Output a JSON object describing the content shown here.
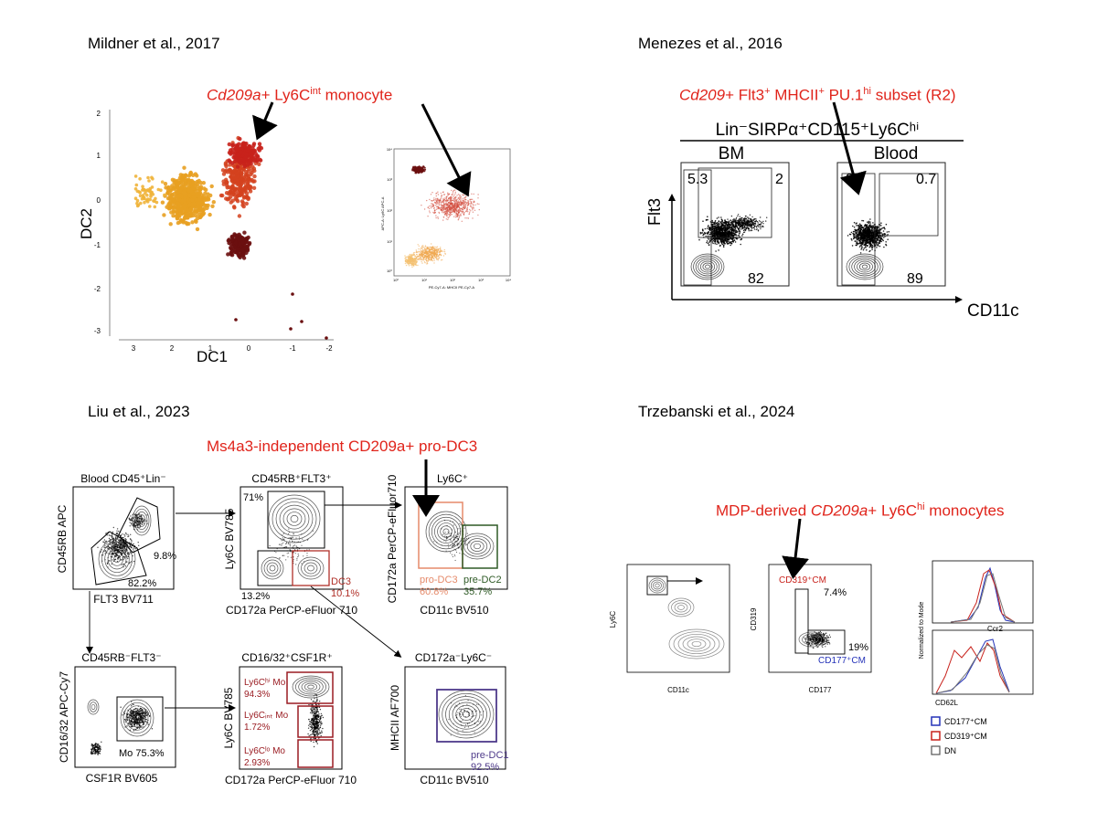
{
  "citations": {
    "mildner": "Mildner et al., 2017",
    "menezes": "Menezes et al., 2016",
    "liu": "Liu et al., 2023",
    "trzebanski": "Trzebanski et al., 2024"
  },
  "annotations": {
    "mildner": {
      "gene": "Cd209a",
      "rest": "+ Ly6C",
      "sup": "int",
      "tail": " monocyte"
    },
    "menezes": {
      "gene": "Cd209",
      "p1": "+ Flt3",
      "s1": "+",
      "p2": " MHCII",
      "s2": "+",
      "p3": " PU.1",
      "s3": "hi",
      "p4": " subset (R2)"
    },
    "liu": "Ms4a3-independent CD209a+ pro-DC3",
    "trzebanski": {
      "pre": "MDP-derived ",
      "gene": "CD209a",
      "rest": "+ Ly6C",
      "sup": "hi",
      "tail": " monocytes"
    }
  },
  "mildner_dc": {
    "xlabel": "DC1",
    "ylabel": "DC2",
    "xticks": [
      "3",
      "2",
      "1",
      "0",
      "-1",
      "-2"
    ],
    "yticks": [
      "2",
      "1",
      "0",
      "-1",
      "-2",
      "-3"
    ]
  },
  "mildner_flow": {
    "xlabel": "PE-Cy7-A: MHCII PE-Cy7-A",
    "ylabel": "APC-A: Ly6C APC-A",
    "yticks": [
      "10⁴",
      "10³",
      "10²",
      "10¹",
      "10⁰"
    ],
    "xticks": [
      "10⁰",
      "10¹",
      "10²",
      "10³",
      "10⁴"
    ]
  },
  "menezes_panel": {
    "header": "Lin⁻SIRPα⁺CD115⁺Ly6Cʰⁱ",
    "bm": "BM",
    "blood": "Blood",
    "ylabel": "Flt3",
    "xlabel": "CD11c",
    "bm_vals": [
      "5.3",
      "2",
      "82"
    ],
    "blood_vals": [
      "3",
      "0.7",
      "89"
    ]
  },
  "liu_panels": {
    "p1": {
      "title": "Blood CD45⁺Lin⁻",
      "ylabel": "CD45RB APC",
      "xlabel": "FLT3 BV711",
      "g1": "9.8%",
      "g2": "82.2%"
    },
    "p2": {
      "title": "CD45RB⁺FLT3⁺",
      "ylabel": "Ly6C BV785",
      "xlabel": "CD172a PerCP-eFluor 710",
      "g1": "71%",
      "g2": "13.2%",
      "g3a": "DC3",
      "g3b": "10.1%"
    },
    "p3": {
      "title": "Ly6C⁺",
      "ylabel": "CD172a PerCP-eFluor710",
      "xlabel": "CD11c BV510",
      "g1a": "pro-DC3",
      "g1b": "60.8%",
      "g2a": "pre-DC2",
      "g2b": "35.7%"
    },
    "p4": {
      "title": "CD45RB⁻FLT3⁻",
      "ylabel": "CD16/32 APC-Cy7",
      "xlabel": "CSF1R BV605",
      "g1": "Mo 75.3%"
    },
    "p5": {
      "title": "CD16/32⁺CSF1R⁺",
      "ylabel": "Ly6C BV785",
      "xlabel": "CD172a PerCP-eFluor 710",
      "g1a": "Ly6Cʰⁱ Mo",
      "g1b": "94.3%",
      "g2a": "Ly6Cᵢₙₜ Mo",
      "g2b": "1.72%",
      "g3a": "Ly6Cˡᵒ Mo",
      "g3b": "2.93%"
    },
    "p6": {
      "title": "CD172a⁻Ly6C⁻",
      "ylabel": "MHCII AF700",
      "xlabel": "CD11c BV510",
      "g1a": "pre-DC1",
      "g1b": "92.5%"
    }
  },
  "trz_panels": {
    "p1": {
      "ylabel": "Ly6C",
      "xlabel": "CD11c"
    },
    "p2": {
      "ylabel": "CD319",
      "xlabel": "CD177",
      "g1": "CD319⁺CM",
      "v1": "7.4%",
      "v2": "19%",
      "g2": "CD177⁺CM"
    },
    "h1": {
      "ylabel": "Normalized to Mode",
      "xlabel": "Ccr2"
    },
    "h2": {
      "xlabel": "CD62L"
    },
    "legend": [
      "CD177⁺CM",
      "CD319⁺CM",
      "DN"
    ]
  },
  "colors": {
    "annotation": "#e0241b",
    "orange": "#e8a021",
    "red": "#c8221c",
    "darkred": "#6b0f10",
    "salmon": "#e58a6a",
    "green": "#2f5a26",
    "purple": "#4e3a8a",
    "maroon": "#9a1c22",
    "blue": "#2432b8"
  }
}
